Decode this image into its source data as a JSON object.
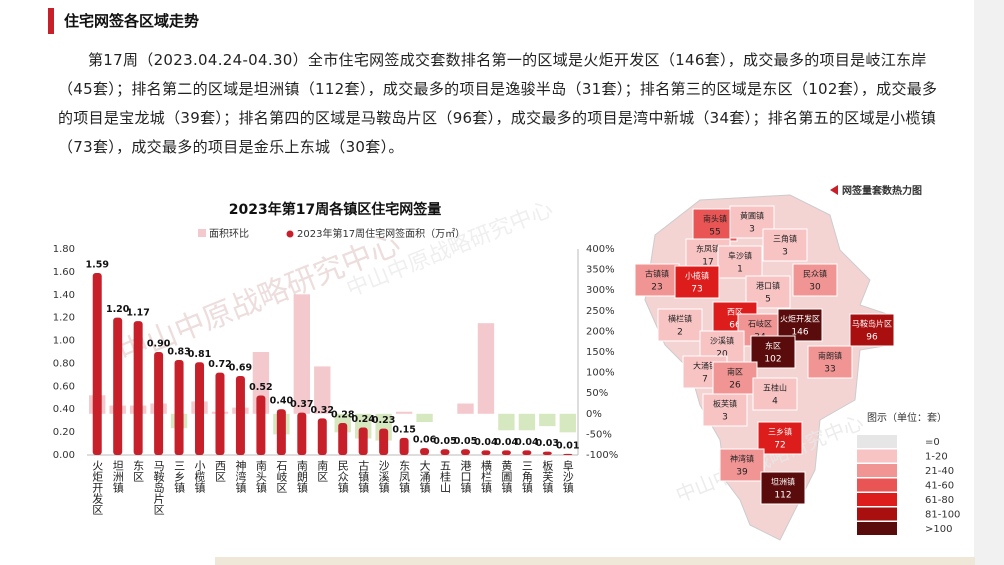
{
  "header": {
    "title": "住宅网签各区域走势"
  },
  "paragraph": "第17周（2023.04.24-04.30）全市住宅网签成交套数排名第一的区域是火炬开发区（146套），成交最多的项目是岐江东岸（45套）；排名第二的区域是坦洲镇（112套），成交最多的项目是逸骏半岛（31套）；排名第三的区域是东区（102套），成交最多的项目是宝龙城（39套）；排名第四的区域是马鞍岛片区（96套），成交最多的项目是湾中新城（34套）；排名第五的区域是小榄镇（73套），成交最多的项目是金乐上东城（30套）。",
  "watermark": "中山中原战略研究中心",
  "chart_data": {
    "type": "bar",
    "title": "2023年第17周各镇区住宅网签量",
    "categories": [
      "火炬开发区",
      "坦洲镇",
      "东区",
      "马鞍岛片区",
      "三乡镇",
      "小榄镇",
      "西区",
      "神湾镇",
      "南头镇",
      "石岐区",
      "南朗镇",
      "南区",
      "民众镇",
      "古镇镇",
      "沙溪镇",
      "东凤镇",
      "大涌镇",
      "五桂山",
      "港口镇",
      "横栏镇",
      "黄圃镇",
      "三角镇",
      "板芙镇",
      "阜沙镇"
    ],
    "series": [
      {
        "name": "面积环比",
        "color": "#f3c9cd",
        "negative_color": "#d6e8bf",
        "axis": "y2",
        "values": [
          45,
          20,
          20,
          25,
          -35,
          30,
          5,
          15,
          150,
          -50,
          290,
          115,
          -45,
          -60,
          -65,
          5,
          -20,
          0,
          25,
          220,
          -40,
          -40,
          -30,
          -45
        ]
      },
      {
        "name": "2023年第17周住宅网签面积（万㎡）",
        "color": "#c8202a",
        "values": [
          1.59,
          1.2,
          1.17,
          0.9,
          0.83,
          0.81,
          0.72,
          0.69,
          0.52,
          0.4,
          0.37,
          0.32,
          0.28,
          0.24,
          0.23,
          0.15,
          0.06,
          0.05,
          0.05,
          0.04,
          0.04,
          0.04,
          0.03,
          0.01
        ],
        "value_labels": [
          "1.59",
          "1.20",
          "1.17",
          "0.90",
          "0.83",
          "0.81",
          "0.72",
          "0.69",
          "0.52",
          "0.40",
          "0.37",
          "0.32",
          "0.28",
          "0.24",
          "0.23",
          "0.15",
          "0.06",
          "0.05",
          "0.05",
          "0.04",
          "0.04",
          "0.04",
          "0.03",
          "0.01"
        ]
      }
    ],
    "ylim": [
      0,
      1.8
    ],
    "yticks": [
      {
        "value": 0,
        "label": "0.00"
      },
      {
        "value": 0.2,
        "label": "0.20"
      },
      {
        "value": 0.4,
        "label": "0.40"
      },
      {
        "value": 0.6,
        "label": "0.60"
      },
      {
        "value": 0.8,
        "label": "0.80"
      },
      {
        "value": 1,
        "label": "1.00"
      },
      {
        "value": 1.2,
        "label": "1.20"
      },
      {
        "value": 1.4,
        "label": "1.40"
      },
      {
        "value": 1.6,
        "label": "1.60"
      },
      {
        "value": 1.8,
        "label": "1.80"
      }
    ],
    "y2lim": [
      -100,
      400
    ],
    "y2ticks": [
      {
        "value": -100,
        "label": "-100%"
      },
      {
        "value": -50,
        "label": "-50%"
      },
      {
        "value": 0,
        "label": "0%"
      },
      {
        "value": 50,
        "label": "50%"
      },
      {
        "value": 100,
        "label": "100%"
      },
      {
        "value": 150,
        "label": "150%"
      },
      {
        "value": 200,
        "label": "200%"
      },
      {
        "value": 250,
        "label": "250%"
      },
      {
        "value": 300,
        "label": "300%"
      },
      {
        "value": 350,
        "label": "350%"
      },
      {
        "value": 400,
        "label": "400%"
      }
    ],
    "grid": false
  },
  "map": {
    "title": "网签量套数热力图",
    "legend_title": "图示（单位：套）",
    "bins": [
      {
        "label": "=0",
        "color": "#e6e6e6"
      },
      {
        "label": "1-20",
        "color": "#f7c3c3"
      },
      {
        "label": "21-40",
        "color": "#f09494"
      },
      {
        "label": "41-60",
        "color": "#e95555"
      },
      {
        "label": "61-80",
        "color": "#dd1c1c"
      },
      {
        "label": "81-100",
        "color": "#a90f0f"
      },
      {
        "label": ">100",
        "color": "#5a0b0b"
      }
    ],
    "regions": [
      {
        "name": "南头镇",
        "value": "55",
        "color": "#e95555"
      },
      {
        "name": "黄圃镇",
        "value": "3",
        "color": "#f7c3c3"
      },
      {
        "name": "东凤镇",
        "value": "17",
        "color": "#f7c3c3"
      },
      {
        "name": "阜沙镇",
        "value": "1",
        "color": "#f7c3c3"
      },
      {
        "name": "三角镇",
        "value": "3",
        "color": "#f7c3c3"
      },
      {
        "name": "古镇镇",
        "value": "23",
        "color": "#f09494"
      },
      {
        "name": "小榄镇",
        "value": "73",
        "color": "#dd1c1c"
      },
      {
        "name": "港口镇",
        "value": "5",
        "color": "#f7c3c3"
      },
      {
        "name": "民众镇",
        "value": "30",
        "color": "#f09494"
      },
      {
        "name": "横栏镇",
        "value": "2",
        "color": "#f7c3c3"
      },
      {
        "name": "西区",
        "value": "66",
        "color": "#dd1c1c"
      },
      {
        "name": "石岐区",
        "value": "34",
        "color": "#f09494"
      },
      {
        "name": "火炬开发区",
        "value": "146",
        "color": "#5a0b0b"
      },
      {
        "name": "马鞍岛片区",
        "value": "96",
        "color": "#a90f0f"
      },
      {
        "name": "沙溪镇",
        "value": "20",
        "color": "#f7c3c3"
      },
      {
        "name": "东区",
        "value": "102",
        "color": "#5a0b0b"
      },
      {
        "name": "南朗镇",
        "value": "33",
        "color": "#f09494"
      },
      {
        "name": "大涌镇",
        "value": "7",
        "color": "#f7c3c3"
      },
      {
        "name": "南区",
        "value": "26",
        "color": "#f09494"
      },
      {
        "name": "五桂山",
        "value": "4",
        "color": "#f7c3c3"
      },
      {
        "name": "板芙镇",
        "value": "3",
        "color": "#f7c3c3"
      },
      {
        "name": "三乡镇",
        "value": "72",
        "color": "#dd1c1c"
      },
      {
        "name": "神湾镇",
        "value": "39",
        "color": "#f09494"
      },
      {
        "name": "坦洲镇",
        "value": "112",
        "color": "#5a0b0b"
      }
    ]
  }
}
